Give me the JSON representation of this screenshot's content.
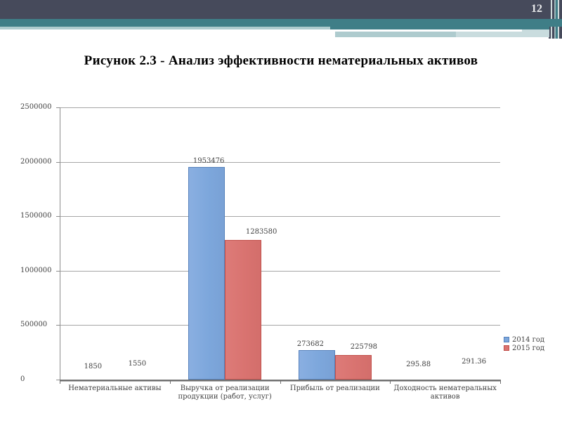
{
  "slide": {
    "number": "12",
    "title": "Рисунок 2.3 - Анализ эффективности нематериальных активов"
  },
  "theme": {
    "header_dark": "#464A5B",
    "header_teal": "#3F7E87",
    "header_light_teal": "#AECBCE",
    "header_lighter_teal": "#C9DCDE",
    "header_stripe_colors": [
      "#464A5B",
      "#CFDBDC",
      "#464A5B",
      "#9DB7BA",
      "#3F7E87",
      "#CFDBDC",
      "#464A5B"
    ],
    "gridline_color": "#A6A6A6",
    "axis_color": "#707070",
    "chart_text_color": "#3F3F3F"
  },
  "chart_data": {
    "type": "bar",
    "categories": [
      "Нематериальные активы",
      "Выручка от реализации продукции (работ, услуг)",
      "Прибыль от реализации",
      "Доходность нематеральных активов"
    ],
    "series": [
      {
        "name": "2014 год",
        "color": "#7DA7DC",
        "border_color": "#5581BC",
        "values": [
          1850,
          1953476,
          273682,
          295.88
        ],
        "labels": [
          "1850",
          "1953476",
          "273682",
          "295.88"
        ]
      },
      {
        "name": "2015 год",
        "color": "#D97370",
        "border_color": "#C2504B",
        "values": [
          1550,
          1283580,
          225798,
          291.36
        ],
        "labels": [
          "1550",
          "1283580",
          "225798",
          "291.36"
        ]
      }
    ],
    "title": "",
    "xlabel": "",
    "ylabel": "",
    "ylim": [
      0,
      2500000
    ],
    "ytick_interval": 500000,
    "yticks": [
      "0",
      "500000",
      "1000000",
      "1500000",
      "2000000",
      "2500000"
    ],
    "grid": true,
    "legend_position": "right",
    "data_labels_shown": true
  }
}
